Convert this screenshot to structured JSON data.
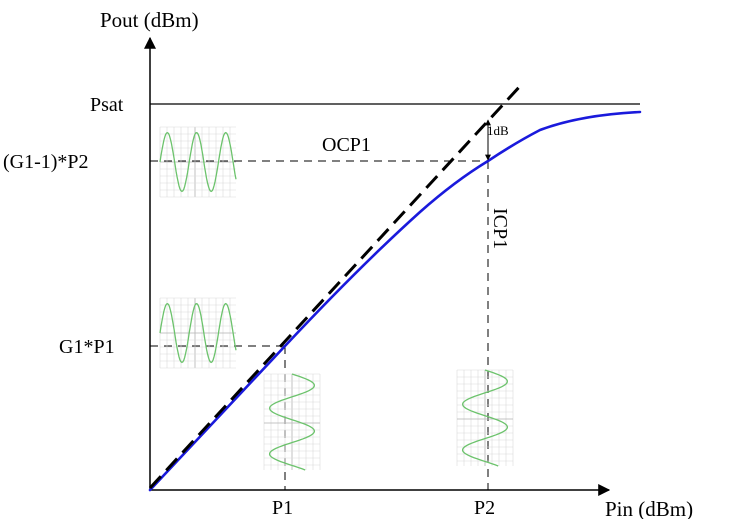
{
  "labels": {
    "y_axis": "Pout (dBm)",
    "x_axis": "Pin (dBm)",
    "psat": "Psat",
    "g1p1": "G1*P1",
    "g1m1p2": "(G1-1)*P2",
    "ocp1": "OCP1",
    "icp1": "ICP1",
    "one_db": "1dB",
    "p1": "P1",
    "p2": "P2"
  },
  "colors": {
    "axes": "#000000",
    "gain_curve": "#1a1adc",
    "linear_extrapolation": "#000000",
    "dashed_guides": "#000000",
    "waveform": "#6cc36c",
    "scope_grid": "#c8c8c8"
  },
  "icons": [
    "scope-waveform-icon-horizontal",
    "scope-waveform-icon-vertical"
  ]
}
